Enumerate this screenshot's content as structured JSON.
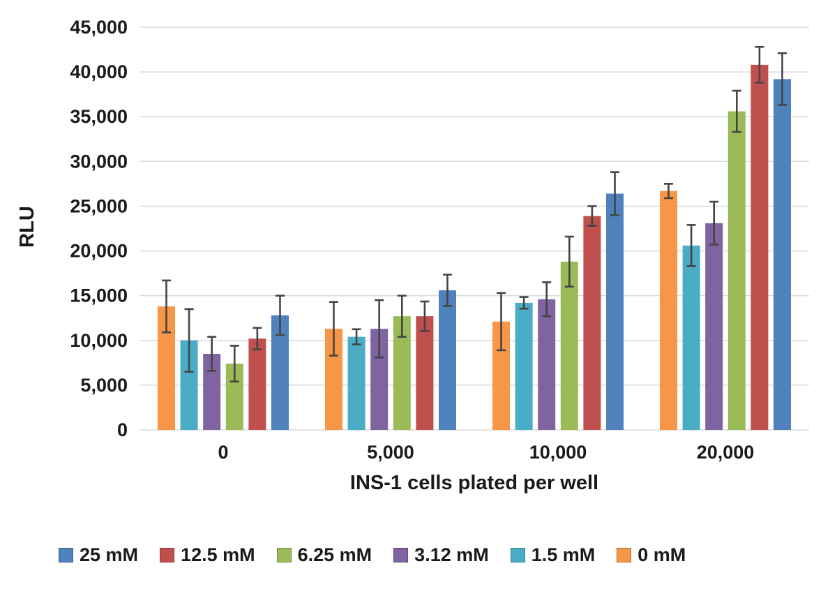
{
  "chart_data": {
    "type": "bar",
    "title": "",
    "xlabel": "INS-1 cells plated per well",
    "ylabel": "RLU",
    "categories": [
      "0",
      "5,000",
      "10,000",
      "20,000"
    ],
    "ylim": [
      0,
      45000
    ],
    "ytick_step": 5000,
    "ytick_labels": [
      "0",
      "5,000",
      "10,000",
      "15,000",
      "20,000",
      "25,000",
      "30,000",
      "35,000",
      "40,000",
      "45,000"
    ],
    "grid": true,
    "legend_position": "bottom",
    "bar_draw_order": "reversed-from-legend",
    "error_bar_color": "#444444",
    "gridline_color": "#d9d9d9",
    "series": [
      {
        "name": "25 mM",
        "color": "#4F81BD",
        "values": [
          12800,
          15600,
          26400,
          39200
        ],
        "errors": [
          2200,
          1750,
          2400,
          2900
        ]
      },
      {
        "name": "12.5 mM",
        "color": "#C0504D",
        "values": [
          10200,
          12700,
          23900,
          40800
        ],
        "errors": [
          1200,
          1650,
          1100,
          2000
        ]
      },
      {
        "name": "6.25 mM",
        "color": "#9BBB59",
        "values": [
          7400,
          12700,
          18800,
          35600
        ],
        "errors": [
          2000,
          2300,
          2800,
          2300
        ]
      },
      {
        "name": "3.12 mM",
        "color": "#8064A2",
        "values": [
          8500,
          11300,
          14600,
          23100
        ],
        "errors": [
          1900,
          3200,
          1900,
          2400
        ]
      },
      {
        "name": "1.5 mM",
        "color": "#4BACC6",
        "values": [
          10000,
          10400,
          14200,
          20600
        ],
        "errors": [
          3500,
          850,
          650,
          2300
        ]
      },
      {
        "name": "0 mM",
        "color": "#F79646",
        "values": [
          13800,
          11300,
          12100,
          26700
        ],
        "errors": [
          2900,
          3000,
          3200,
          800
        ]
      }
    ]
  }
}
